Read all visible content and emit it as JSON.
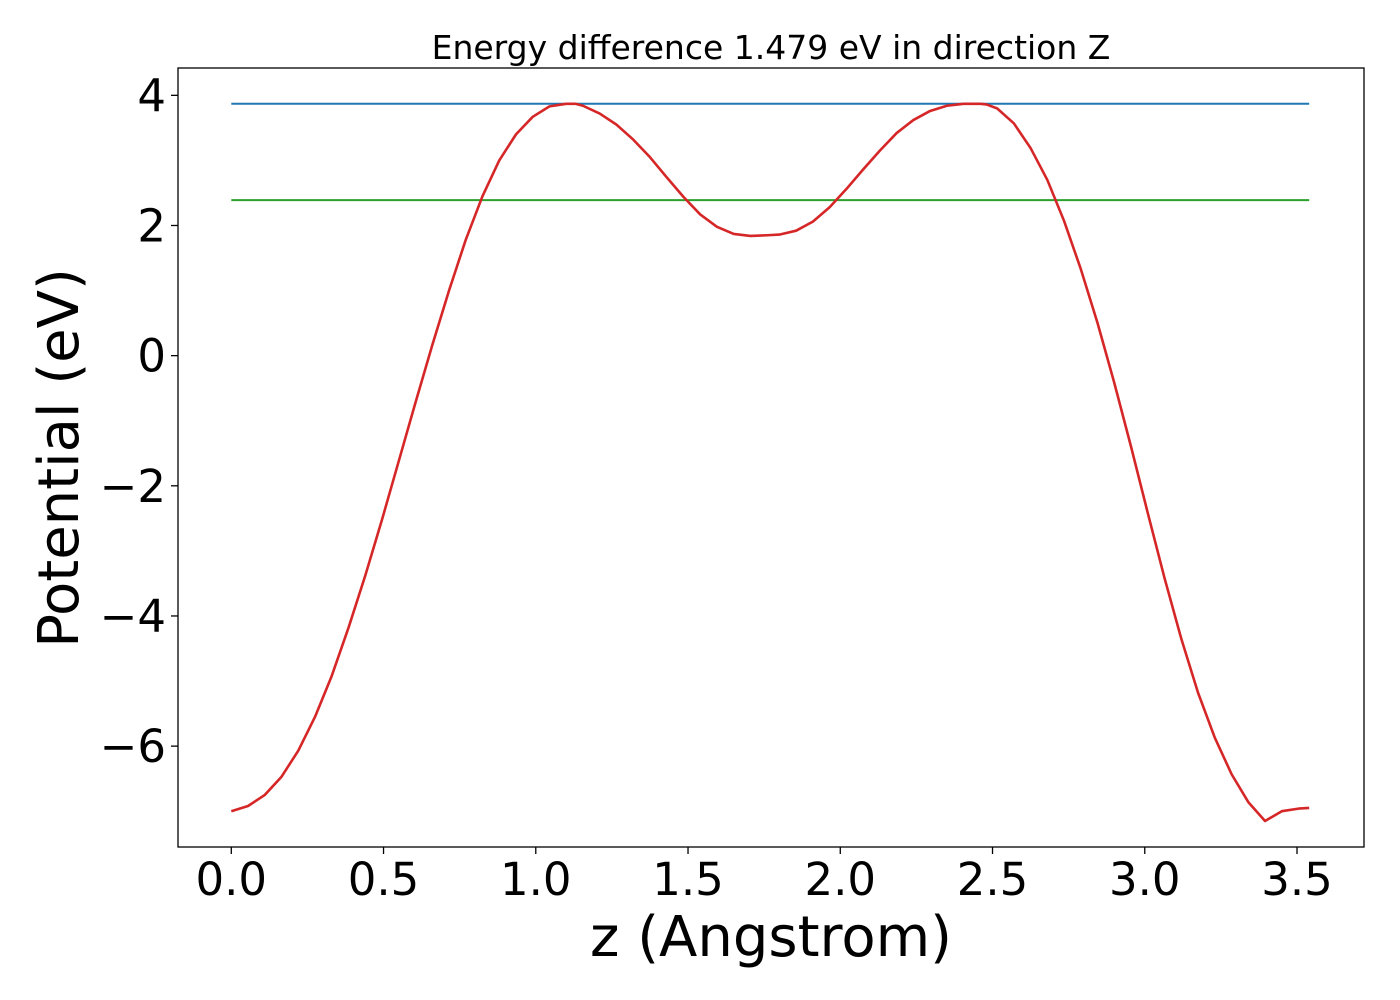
{
  "chart_data": {
    "type": "line",
    "title": "Energy difference 1.479 eV in direction Z",
    "xlabel": "z (Angstrom)",
    "ylabel": "Potential (eV)",
    "xlim": [
      -0.175,
      3.72
    ],
    "ylim": [
      -7.55,
      4.42
    ],
    "grid": false,
    "x_ticks": [
      0.0,
      0.5,
      1.0,
      1.5,
      2.0,
      2.5,
      3.0,
      3.5
    ],
    "x_tick_labels": [
      "0.0",
      "0.5",
      "1.0",
      "1.5",
      "2.0",
      "2.5",
      "3.0",
      "3.5"
    ],
    "y_ticks": [
      -6,
      -4,
      -2,
      0,
      2,
      4
    ],
    "y_tick_labels": [
      "−6",
      "−4",
      "−2",
      "0",
      "2",
      "4"
    ],
    "series": [
      {
        "color": "#d62728",
        "x": [
          0.0,
          0.055,
          0.11,
          0.165,
          0.22,
          0.275,
          0.33,
          0.385,
          0.44,
          0.495,
          0.55,
          0.605,
          0.66,
          0.715,
          0.77,
          0.825,
          0.88,
          0.935,
          0.99,
          1.045,
          1.1,
          1.13,
          1.155,
          1.21,
          1.265,
          1.32,
          1.375,
          1.43,
          1.485,
          1.54,
          1.595,
          1.65,
          1.705,
          1.76,
          1.8,
          1.855,
          1.91,
          1.965,
          2.02,
          2.075,
          2.13,
          2.185,
          2.24,
          2.295,
          2.35,
          2.405,
          2.46,
          2.48,
          2.515,
          2.57,
          2.625,
          2.68,
          2.735,
          2.79,
          2.845,
          2.9,
          2.955,
          3.01,
          3.065,
          3.12,
          3.175,
          3.23,
          3.285,
          3.34,
          3.395,
          3.45,
          3.505,
          3.54
        ],
        "y": [
          -7.0,
          -6.92,
          -6.75,
          -6.47,
          -6.07,
          -5.55,
          -4.92,
          -4.18,
          -3.38,
          -2.52,
          -1.62,
          -0.72,
          0.16,
          1.0,
          1.78,
          2.45,
          3.0,
          3.4,
          3.67,
          3.83,
          3.87,
          3.87,
          3.84,
          3.72,
          3.55,
          3.32,
          3.05,
          2.74,
          2.44,
          2.17,
          1.98,
          1.87,
          1.84,
          1.85,
          1.86,
          1.92,
          2.06,
          2.28,
          2.56,
          2.86,
          3.15,
          3.42,
          3.62,
          3.76,
          3.84,
          3.87,
          3.87,
          3.86,
          3.8,
          3.57,
          3.19,
          2.7,
          2.07,
          1.33,
          0.5,
          -0.42,
          -1.4,
          -2.42,
          -3.42,
          -4.35,
          -5.18,
          -5.87,
          -6.43,
          -6.86,
          -7.15,
          -7.0,
          -6.96,
          -6.95
        ]
      },
      {
        "color": "#1f77b4",
        "x": [
          0.0,
          3.54
        ],
        "y": [
          3.87,
          3.87
        ]
      },
      {
        "color": "#2ca02c",
        "x": [
          0.0,
          3.54
        ],
        "y": [
          2.39,
          2.39
        ]
      }
    ]
  }
}
